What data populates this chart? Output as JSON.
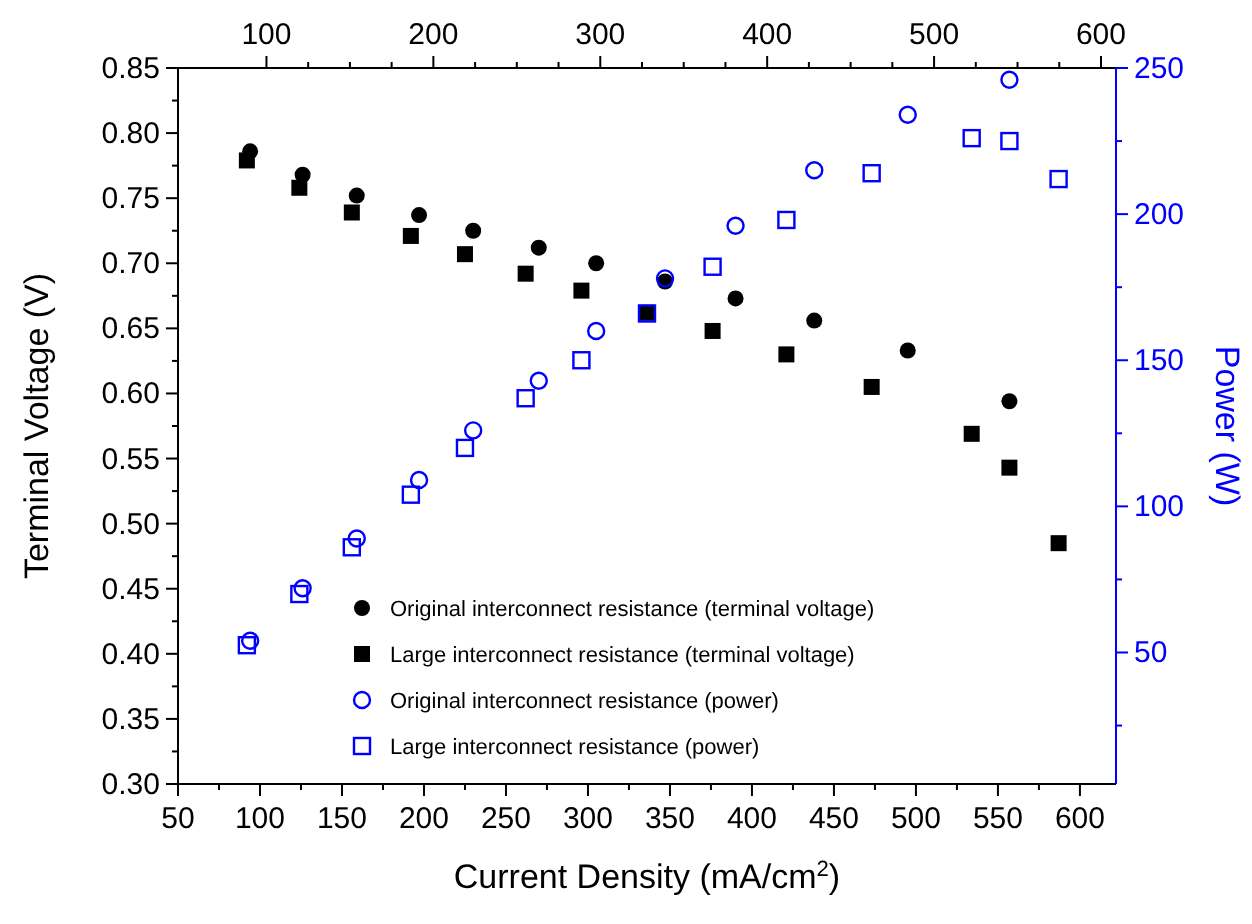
{
  "chart_data": {
    "type": "scatter",
    "xlabel": "Current Density (mA/cm$^{2}$)",
    "ylabel": "Terminal Voltage (V)",
    "y2label": "Power (W)",
    "xlim": [
      50,
      622
    ],
    "xticks": [
      50,
      100,
      150,
      200,
      250,
      300,
      350,
      400,
      450,
      500,
      550,
      600
    ],
    "x2lim": [
      47,
      609
    ],
    "x2ticks": [
      100,
      200,
      300,
      400,
      500,
      600
    ],
    "ylim": [
      0.3,
      0.85
    ],
    "yticks": [
      {
        "value": 0.3,
        "label": "0.30"
      },
      {
        "value": 0.35,
        "label": "0.35"
      },
      {
        "value": 0.4,
        "label": "0.40"
      },
      {
        "value": 0.45,
        "label": "0.45"
      },
      {
        "value": 0.5,
        "label": "0.50"
      },
      {
        "value": 0.55,
        "label": "0.55"
      },
      {
        "value": 0.6,
        "label": "0.60"
      },
      {
        "value": 0.65,
        "label": "0.65"
      },
      {
        "value": 0.7,
        "label": "0.70"
      },
      {
        "value": 0.75,
        "label": "0.75"
      },
      {
        "value": 0.8,
        "label": "0.80"
      },
      {
        "value": 0.85,
        "label": "0.85"
      }
    ],
    "y2lim": [
      5,
      250
    ],
    "y2ticks": [
      50,
      100,
      150,
      200,
      250
    ],
    "legend": "bottom left",
    "grid": false,
    "series": [
      {
        "name": "Original interconnect resistance (terminal voltage)",
        "color": "#000000",
        "marker": "circle",
        "x": [
          94,
          126,
          159,
          197,
          230,
          270,
          305,
          347,
          390,
          438,
          495,
          557
        ],
        "values": [
          0.786,
          0.768,
          0.752,
          0.737,
          0.725,
          0.712,
          0.7,
          0.686,
          0.673,
          0.656,
          0.633,
          0.594
        ]
      },
      {
        "name": "Large interconnect resistance (terminal voltage)",
        "color": "#000000",
        "marker": "square",
        "x": [
          92,
          124,
          156,
          192,
          225,
          262,
          296,
          336,
          376,
          421,
          473,
          534,
          557,
          587
        ],
        "values": [
          0.779,
          0.758,
          0.739,
          0.721,
          0.707,
          0.692,
          0.679,
          0.662,
          0.648,
          0.63,
          0.605,
          0.569,
          0.543,
          0.485
        ]
      },
      {
        "name": "Original interconnect resistance (power)",
        "color": "#0000ff",
        "marker": "circle",
        "axis": "y2",
        "x": [
          94,
          126,
          159,
          197,
          230,
          270,
          305,
          347,
          390,
          438,
          495,
          557
        ],
        "values": [
          54,
          72,
          89,
          109,
          126,
          143,
          160,
          178,
          196,
          215,
          234,
          246
        ]
      },
      {
        "name": "Large interconnect resistance (power)",
        "color": "#0000ff",
        "marker": "square",
        "axis": "y2",
        "x": [
          92,
          124,
          156,
          192,
          225,
          262,
          296,
          336,
          376,
          421,
          473,
          534,
          557,
          587
        ],
        "values": [
          52.5,
          70,
          86,
          104,
          120,
          137,
          150,
          166,
          182,
          198,
          214,
          226,
          225,
          212
        ]
      }
    ]
  }
}
